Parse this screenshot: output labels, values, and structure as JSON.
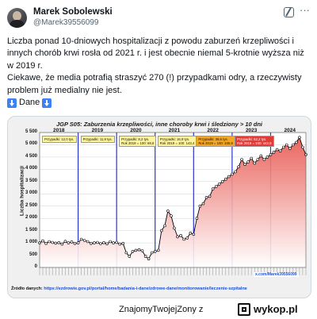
{
  "author": {
    "name": "Marek Sobolewski",
    "handle": "@Marek39556099"
  },
  "tweet": {
    "paragraph1": "Liczba ponad 10-dniowych hospitalizacji z powodu zaburzeń krzepliwości i innych chorób krwi rosła od 2021 r. i jest obecnie niemal 5-krotnie wyższa niż w 2019 r.",
    "paragraph2": "Ciekawe, że media potrafią straszyć 270 (!) przypadkami odry, a rzeczywisty problem już medialny nie jest.",
    "dane_label": "Dane"
  },
  "chart_data": {
    "type": "line",
    "title": "JGP S05: Zaburzenia krzepliwości, inne choroby krwi i śledziony > 10 dni",
    "ylabel": "Liczba hospitalizacji",
    "ylim": [
      0,
      5500
    ],
    "yticks": [
      "0",
      "500",
      "1 000",
      "1 500",
      "2 000",
      "2 500",
      "3 000",
      "3 500",
      "4 000",
      "4 500",
      "5 000",
      "5 500"
    ],
    "years": [
      "2018",
      "2019",
      "2020",
      "2021",
      "2022",
      "2023",
      "2024"
    ],
    "annotations": [
      {
        "year": "2018",
        "text": "Przypadki: 12,0 tys."
      },
      {
        "year": "2019",
        "text": "Przypadki: 11,8 tys."
      },
      {
        "year": "2020",
        "text": "Przypadki: 8,2 tys. Rok 2019 = 100: 69,6"
      },
      {
        "year": "2021",
        "text": "Przypadki: 16,9 tys. Rok 2019 = 100: 143,4"
      },
      {
        "year": "2022",
        "text": "Przypadki: 39,6 tys. Rok 2019 = 100: 335,9"
      },
      {
        "year": "2023",
        "text": "Przypadki: 52,2 tys. Rok 2019 = 100: 442,8"
      }
    ],
    "series": [
      {
        "values": [
          1000,
          1080,
          980,
          1050,
          1020,
          990,
          1010,
          950,
          1060,
          1000,
          1040,
          980,
          1000,
          1150,
          1100,
          1050,
          980,
          1000,
          1020,
          970,
          1010,
          960,
          1050,
          1000,
          1020,
          950,
          980,
          600,
          450,
          650,
          700,
          720,
          680,
          450,
          350,
          600,
          650,
          700,
          1500,
          1700,
          2300,
          2100,
          1600,
          1250,
          1300,
          1150,
          1200,
          1400,
          1350,
          2000,
          2500,
          2600,
          2850,
          2900,
          3200,
          3300,
          3400,
          3500,
          3600,
          3700,
          3800,
          3900,
          4100,
          4400,
          4200,
          4300,
          4450,
          4250,
          4400,
          4550,
          4400,
          4500,
          4600,
          4700,
          4800,
          4750,
          4900,
          5000,
          4850,
          5000,
          5100,
          5300,
          4900,
          4600
        ]
      }
    ],
    "source_label": "Źródło danych:",
    "source_url": "https://ezdrowie.gov.pl/portal/home/badania-i-dane/zdrowe-dane/monitorowanie/leczenie-szpitalne",
    "author_tag": "x.com/Marek39556099"
  },
  "footer": {
    "text": "ZnajomyTwojejZony",
    "z": "z",
    "brand": "wykop.pl"
  },
  "colors": {
    "line": "#000000",
    "fill_top": "#e8554e",
    "fill_bottom": "#ffffff",
    "year_line": "#2b35c9"
  }
}
